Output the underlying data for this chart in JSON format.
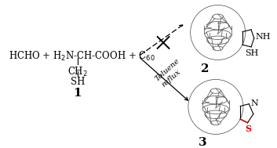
{
  "background_color": "#ffffff",
  "toluene_text": "Toluene",
  "reflux_text": "reflux",
  "arrow_color": "#000000",
  "cross_color": "#000000",
  "fullerene_edge_color": "#555555",
  "thiazolidine_color": "#cc0000",
  "text_color": "#000000",
  "font_size_main": 8.5,
  "font_size_label": 10,
  "font_size_condition": 7.0,
  "compound1_label": "1",
  "compound2_label": "2",
  "compound3_label": "3"
}
